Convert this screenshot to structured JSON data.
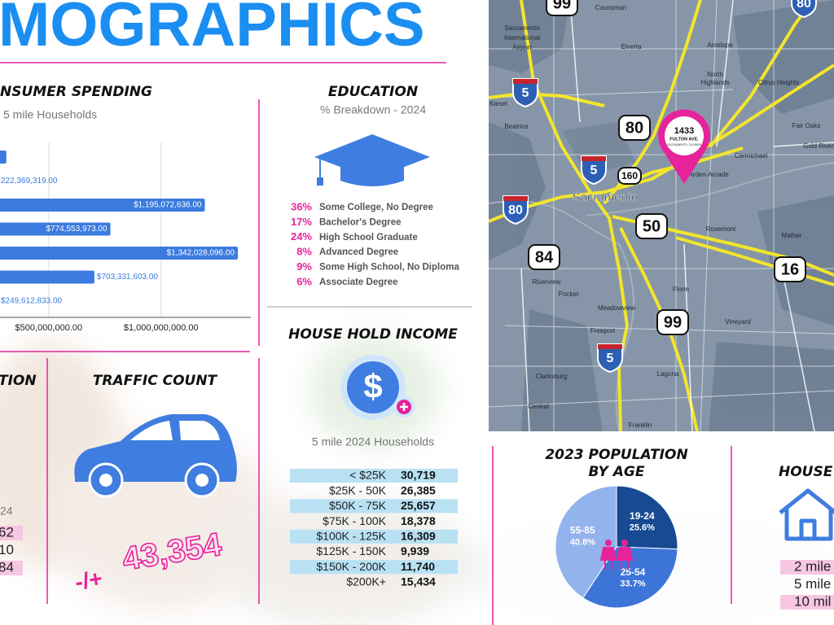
{
  "header": {
    "title": "MOGRAPHICS"
  },
  "chart_data": [
    {
      "type": "bar",
      "orientation": "horizontal",
      "title": "NSUMER SPENDING",
      "subtitle": "5 mile Households",
      "values": [
        311000000,
        222369319,
        1195072636,
        774553973,
        1342028096,
        703331603,
        249612833
      ],
      "value_labels": [
        null,
        "222,369,319.00",
        "$1,195,072,636.00",
        "$774,553,973.00",
        "$1,342,028,096.00",
        "$703,331,603.00",
        "$249,612,833.00"
      ],
      "color": "#3b7be0",
      "xlim": [
        0,
        1400000000
      ],
      "xticks": [
        {
          "value": 500000000,
          "label": "$500,000,000.00"
        },
        {
          "value": 1000000000,
          "label": "$1,000,000,000.00"
        }
      ],
      "grid": true
    },
    {
      "type": "pie",
      "title": [
        "2023 POPULATION",
        "BY AGE"
      ],
      "categories": [
        "19-24",
        "25-54",
        "55-85"
      ],
      "values": [
        25.6,
        33.7,
        40.8
      ],
      "value_labels": [
        "25.6%",
        "33.7%",
        "40.8%"
      ],
      "colors": [
        "#174a92",
        "#3d74d8",
        "#93b3ec"
      ]
    }
  ],
  "education": {
    "title": "EDUCATION",
    "subtitle": "% Breakdown - 2024",
    "items": [
      {
        "percent": "36%",
        "label": "Some College, No Degree"
      },
      {
        "percent": "17%",
        "label": "Bachelor's Degree"
      },
      {
        "percent": "24%",
        "label": "High School Graduate"
      },
      {
        "percent": "8%",
        "label": "Advanced Degree"
      },
      {
        "percent": "9%",
        "label": "Some High School, No Diploma"
      },
      {
        "percent": "6%",
        "label": "Associate Degree"
      }
    ]
  },
  "income": {
    "title": "HOUSE HOLD INCOME",
    "icon_symbol": "$",
    "subtitle": "5 mile 2024 Households",
    "rows": [
      [
        "< $25K",
        "30,719"
      ],
      [
        "$25K - 50K",
        "26,385"
      ],
      [
        "$50K - 75K",
        "25,657"
      ],
      [
        "$75K - 100K",
        "18,378"
      ],
      [
        "$100K - 125K",
        "16,309"
      ],
      [
        "$125K - 150K",
        "9,939"
      ],
      [
        "$150K - 200K",
        "11,740"
      ],
      [
        "$200K+",
        "15,434"
      ]
    ]
  },
  "population_partial": {
    "title": "TION",
    "subtitle": "24",
    "rows": [
      "62",
      "10",
      "84"
    ]
  },
  "traffic": {
    "title": "TRAFFIC COUNT",
    "prefix": "-/+",
    "count": "43,354"
  },
  "households_partial": {
    "title": "HOUSE",
    "rows": [
      "2 mile",
      "5 mile",
      "10 mil"
    ]
  },
  "map": {
    "marker": {
      "number": "1433",
      "street": "FULTON AVE.",
      "city": "SACRAMENTO, CA 95825"
    },
    "interstates": [
      "80",
      "5",
      "5",
      "80",
      "5"
    ],
    "routes": [
      "99",
      "80",
      "160",
      "50",
      "84",
      "99",
      "16"
    ],
    "places": [
      "Counsman",
      "Sacramento",
      "International",
      "Airport",
      "Elverta",
      "Antelope",
      "North",
      "Highlands",
      "Citrus Heights",
      "Kiesel",
      "Beatrice",
      "Carmichael",
      "Fair Oaks",
      "Gold River",
      "Arden-Arcade",
      "Rosemont",
      "Mather",
      "Riverview",
      "Pocket",
      "Meadowview",
      "Florin",
      "Freeport",
      "Vineyard",
      "Clarksburg",
      "Laguna",
      "Central",
      "Franklin"
    ],
    "city": "Sacramento"
  }
}
